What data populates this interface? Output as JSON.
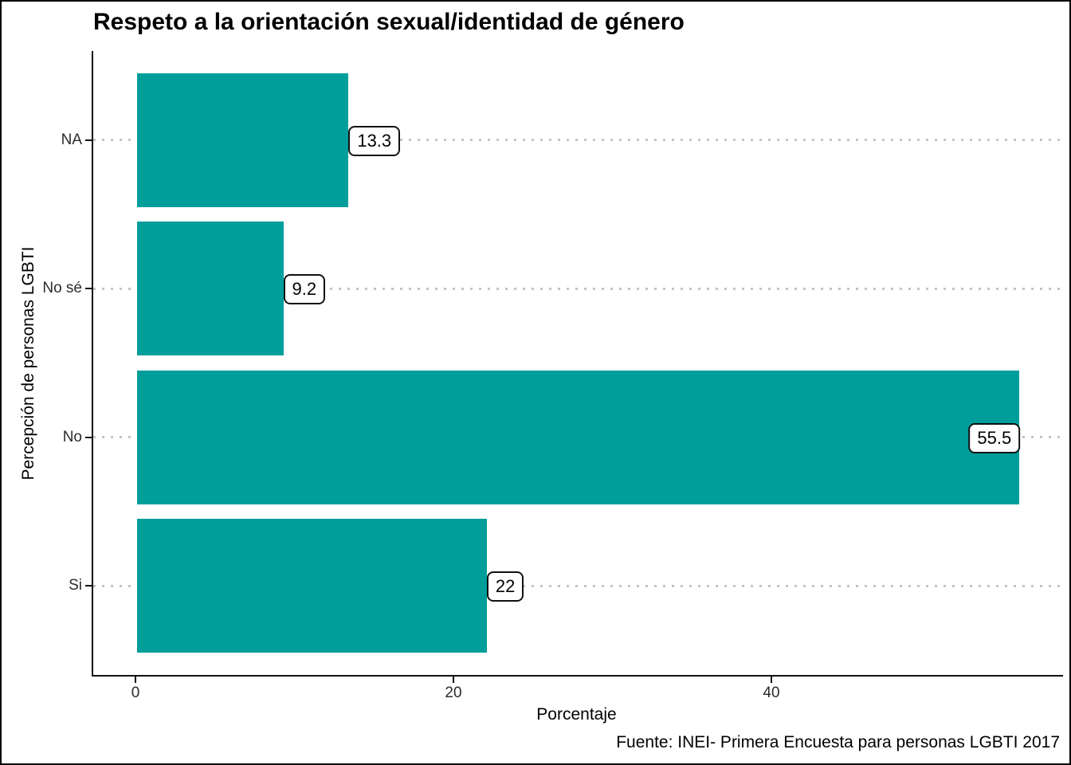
{
  "title": "Respeto a la orientación sexual/identidad de género",
  "caption": "Fuente: INEI- Primera Encuesta para personas LGBTI 2017",
  "chart_data": {
    "type": "bar",
    "orientation": "horizontal",
    "title": "Respeto a la orientación sexual/identidad de género",
    "xlabel": "Porcentaje",
    "ylabel": "Percepción de personas LGBTI",
    "categories": [
      "NA",
      "No sé",
      "No",
      "Si"
    ],
    "values": [
      13.3,
      9.2,
      55.5,
      22
    ],
    "data_labels": [
      "13.3",
      "9.2",
      "55.5",
      "22"
    ],
    "label_placement": [
      "outside",
      "outside",
      "inside",
      "outside"
    ],
    "x_ticks": [
      0,
      20,
      40
    ],
    "xlim": [
      -2.8,
      58.3
    ],
    "bar_color": "#009E9B",
    "grid": "horizontal-dotted",
    "gridline_color": "#c4c4c4",
    "axis_color": "#111111",
    "label_box": {
      "fill": "#ffffff",
      "border": "#111111"
    }
  }
}
